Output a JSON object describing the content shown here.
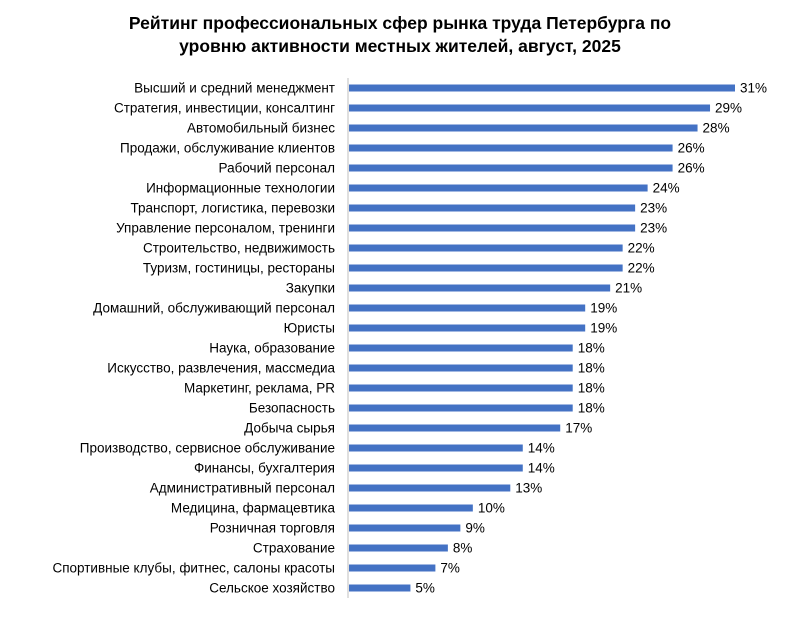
{
  "chart_data": {
    "type": "bar",
    "orientation": "horizontal",
    "title_lines": [
      "Рейтинг профессиональных сфер рынка труда Петербурга по",
      "уровню активности местных жителей, август, 2025"
    ],
    "xlabel": "",
    "ylabel": "",
    "xlim": [
      0,
      31
    ],
    "grid": false,
    "legend": "none",
    "bar_color": "#4472C4",
    "value_suffix": "%",
    "categories": [
      "Высший и средний менеджмент",
      "Стратегия, инвестиции, консалтинг",
      "Автомобильный бизнес",
      "Продажи, обслуживание клиентов",
      "Рабочий персонал",
      "Информационные технологии",
      "Транспорт, логистика, перевозки",
      "Управление персоналом, тренинги",
      "Строительство, недвижимость",
      "Туризм, гостиницы, рестораны",
      "Закупки",
      "Домашний, обслуживающий персонал",
      "Юристы",
      "Наука, образование",
      "Искусство, развлечения, массмедиа",
      "Маркетинг, реклама, PR",
      "Безопасность",
      "Добыча сырья",
      "Производство, сервисное обслуживание",
      "Финансы, бухгалтерия",
      "Административный персонал",
      "Медицина, фармацевтика",
      "Розничная торговля",
      "Страхование",
      "Спортивные клубы, фитнес, салоны красоты",
      "Сельское хозяйство"
    ],
    "values": [
      31,
      29,
      28,
      26,
      26,
      24,
      23,
      23,
      22,
      22,
      21,
      19,
      19,
      18,
      18,
      18,
      18,
      17,
      14,
      14,
      13,
      10,
      9,
      8,
      7,
      5
    ],
    "labels": [
      "31%",
      "29%",
      "28%",
      "26%",
      "26%",
      "24%",
      "23%",
      "23%",
      "22%",
      "22%",
      "21%",
      "19%",
      "19%",
      "18%",
      "18%",
      "18%",
      "18%",
      "17%",
      "14%",
      "14%",
      "13%",
      "10%",
      "9%",
      "8%",
      "7%",
      "5%"
    ]
  }
}
